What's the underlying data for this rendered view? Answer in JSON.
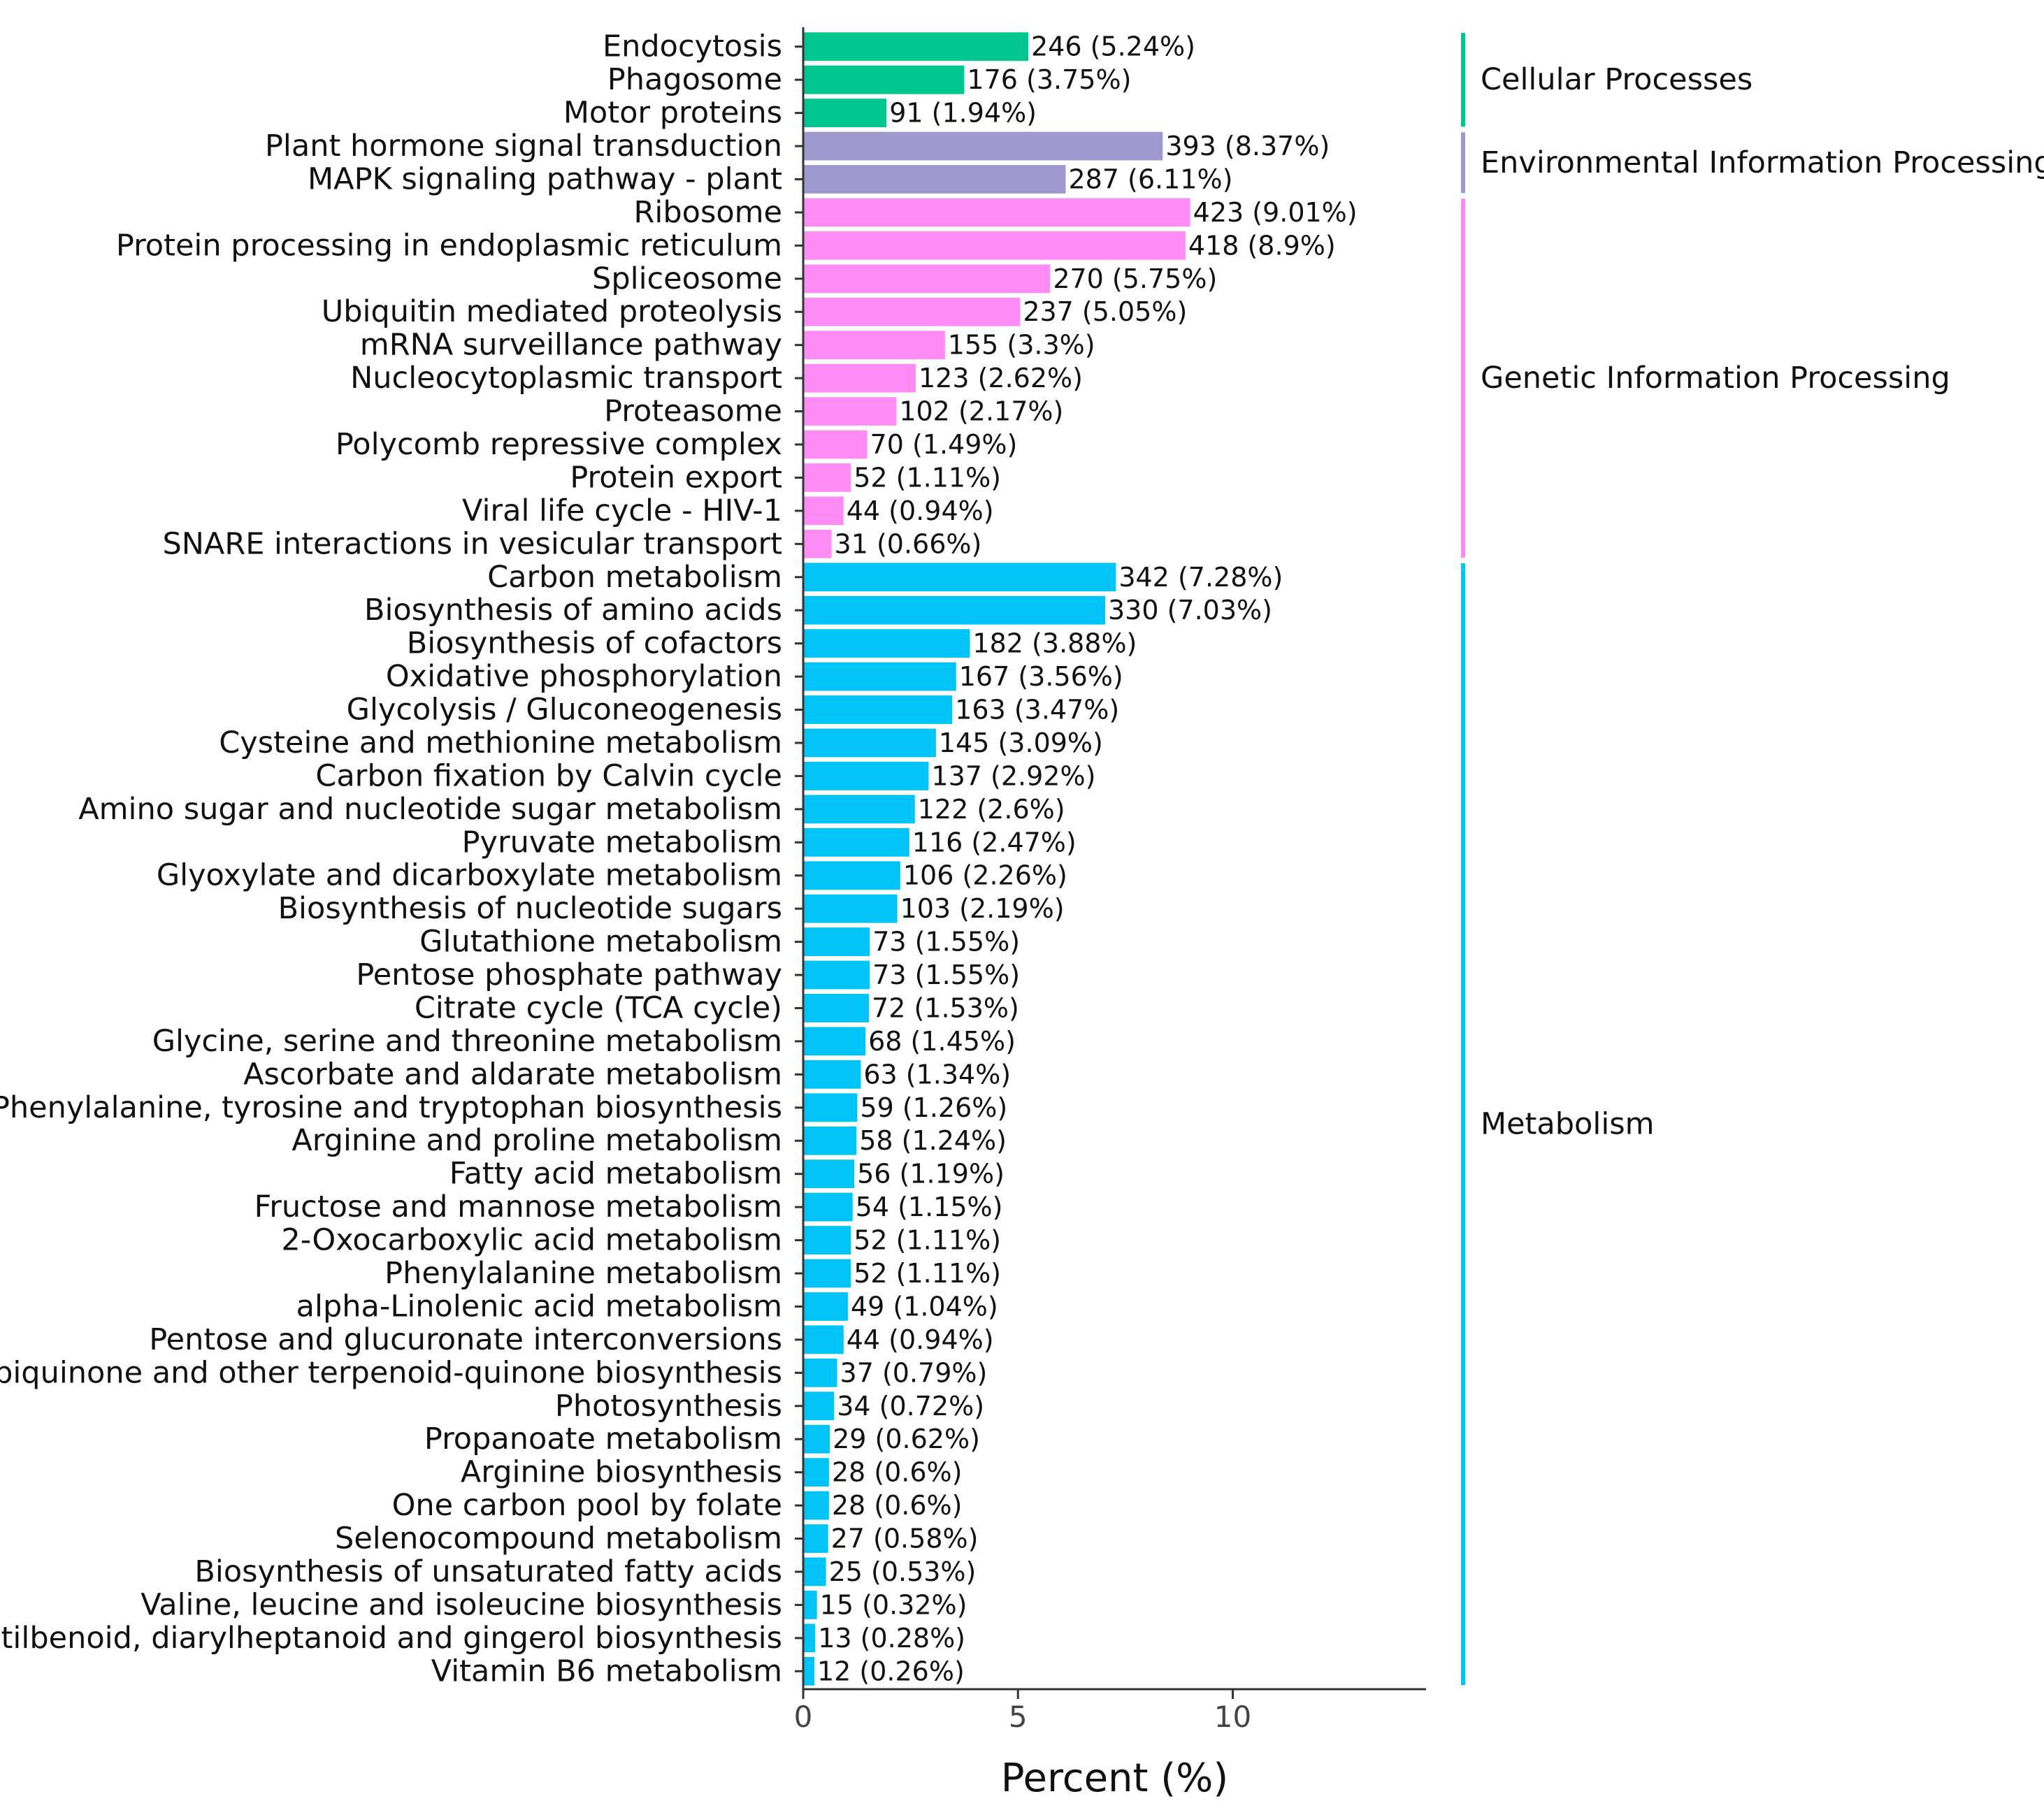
{
  "chart_data": {
    "type": "bar",
    "orientation": "horizontal",
    "title": "",
    "xlabel": "Percent (%)",
    "ylabel": "",
    "xlim": [
      0,
      14.5
    ],
    "xticks": [
      0,
      5,
      10
    ],
    "grid": false,
    "groups": [
      {
        "name": "Cellular Processes",
        "color": "#00c690",
        "start": 0,
        "end": 2
      },
      {
        "name": "Environmental Information Processing",
        "color": "#9e9ad0",
        "start": 3,
        "end": 4
      },
      {
        "name": "Genetic Information Processing",
        "color": "#ff8cf5",
        "start": 5,
        "end": 15
      },
      {
        "name": "Metabolism",
        "color": "#00c3f7",
        "start": 16,
        "end": 49
      }
    ],
    "bars": [
      {
        "category": "Endocytosis",
        "count": 246,
        "percent": 5.24,
        "label": "246 (5.24%)"
      },
      {
        "category": "Phagosome",
        "count": 176,
        "percent": 3.75,
        "label": "176 (3.75%)"
      },
      {
        "category": "Motor proteins",
        "count": 91,
        "percent": 1.94,
        "label": "91 (1.94%)"
      },
      {
        "category": "Plant hormone signal transduction",
        "count": 393,
        "percent": 8.37,
        "label": "393 (8.37%)"
      },
      {
        "category": "MAPK signaling pathway - plant",
        "count": 287,
        "percent": 6.11,
        "label": "287 (6.11%)"
      },
      {
        "category": "Ribosome",
        "count": 423,
        "percent": 9.01,
        "label": "423 (9.01%)"
      },
      {
        "category": "Protein processing in endoplasmic reticulum",
        "count": 418,
        "percent": 8.9,
        "label": "418 (8.9%)"
      },
      {
        "category": "Spliceosome",
        "count": 270,
        "percent": 5.75,
        "label": "270 (5.75%)"
      },
      {
        "category": "Ubiquitin mediated proteolysis",
        "count": 237,
        "percent": 5.05,
        "label": "237 (5.05%)"
      },
      {
        "category": "mRNA surveillance pathway",
        "count": 155,
        "percent": 3.3,
        "label": "155 (3.3%)"
      },
      {
        "category": "Nucleocytoplasmic transport",
        "count": 123,
        "percent": 2.62,
        "label": "123 (2.62%)"
      },
      {
        "category": "Proteasome",
        "count": 102,
        "percent": 2.17,
        "label": "102 (2.17%)"
      },
      {
        "category": "Polycomb repressive complex",
        "count": 70,
        "percent": 1.49,
        "label": "70 (1.49%)"
      },
      {
        "category": "Protein export",
        "count": 52,
        "percent": 1.11,
        "label": "52 (1.11%)"
      },
      {
        "category": "Viral life cycle - HIV-1",
        "count": 44,
        "percent": 0.94,
        "label": "44 (0.94%)"
      },
      {
        "category": "SNARE interactions in vesicular transport",
        "count": 31,
        "percent": 0.66,
        "label": "31 (0.66%)"
      },
      {
        "category": "Carbon metabolism",
        "count": 342,
        "percent": 7.28,
        "label": "342 (7.28%)"
      },
      {
        "category": "Biosynthesis of amino acids",
        "count": 330,
        "percent": 7.03,
        "label": "330 (7.03%)"
      },
      {
        "category": "Biosynthesis of cofactors",
        "count": 182,
        "percent": 3.88,
        "label": "182 (3.88%)"
      },
      {
        "category": "Oxidative phosphorylation",
        "count": 167,
        "percent": 3.56,
        "label": "167 (3.56%)"
      },
      {
        "category": "Glycolysis / Gluconeogenesis",
        "count": 163,
        "percent": 3.47,
        "label": "163 (3.47%)"
      },
      {
        "category": "Cysteine and methionine metabolism",
        "count": 145,
        "percent": 3.09,
        "label": "145 (3.09%)"
      },
      {
        "category": "Carbon fixation by Calvin cycle",
        "count": 137,
        "percent": 2.92,
        "label": "137 (2.92%)"
      },
      {
        "category": "Amino sugar and nucleotide sugar metabolism",
        "count": 122,
        "percent": 2.6,
        "label": "122 (2.6%)"
      },
      {
        "category": "Pyruvate metabolism",
        "count": 116,
        "percent": 2.47,
        "label": "116 (2.47%)"
      },
      {
        "category": "Glyoxylate and dicarboxylate metabolism",
        "count": 106,
        "percent": 2.26,
        "label": "106 (2.26%)"
      },
      {
        "category": "Biosynthesis of nucleotide sugars",
        "count": 103,
        "percent": 2.19,
        "label": "103 (2.19%)"
      },
      {
        "category": "Glutathione metabolism",
        "count": 73,
        "percent": 1.55,
        "label": "73 (1.55%)"
      },
      {
        "category": "Pentose phosphate pathway",
        "count": 73,
        "percent": 1.55,
        "label": "73 (1.55%)"
      },
      {
        "category": "Citrate cycle (TCA cycle)",
        "count": 72,
        "percent": 1.53,
        "label": "72 (1.53%)"
      },
      {
        "category": "Glycine, serine and threonine metabolism",
        "count": 68,
        "percent": 1.45,
        "label": "68 (1.45%)"
      },
      {
        "category": "Ascorbate and aldarate metabolism",
        "count": 63,
        "percent": 1.34,
        "label": "63 (1.34%)"
      },
      {
        "category": "Phenylalanine, tyrosine and tryptophan biosynthesis",
        "count": 59,
        "percent": 1.26,
        "label": "59 (1.26%)"
      },
      {
        "category": "Arginine and proline metabolism",
        "count": 58,
        "percent": 1.24,
        "label": "58 (1.24%)"
      },
      {
        "category": "Fatty acid metabolism",
        "count": 56,
        "percent": 1.19,
        "label": "56 (1.19%)"
      },
      {
        "category": "Fructose and mannose metabolism",
        "count": 54,
        "percent": 1.15,
        "label": "54 (1.15%)"
      },
      {
        "category": "2-Oxocarboxylic acid metabolism",
        "count": 52,
        "percent": 1.11,
        "label": "52 (1.11%)"
      },
      {
        "category": "Phenylalanine metabolism",
        "count": 52,
        "percent": 1.11,
        "label": "52 (1.11%)"
      },
      {
        "category": "alpha-Linolenic acid metabolism",
        "count": 49,
        "percent": 1.04,
        "label": "49 (1.04%)"
      },
      {
        "category": "Pentose and glucuronate interconversions",
        "count": 44,
        "percent": 0.94,
        "label": "44 (0.94%)"
      },
      {
        "category": "Ubiquinone and other terpenoid-quinone biosynthesis",
        "count": 37,
        "percent": 0.79,
        "label": "37 (0.79%)"
      },
      {
        "category": "Photosynthesis",
        "count": 34,
        "percent": 0.72,
        "label": "34 (0.72%)"
      },
      {
        "category": "Propanoate metabolism",
        "count": 29,
        "percent": 0.62,
        "label": "29 (0.62%)"
      },
      {
        "category": "Arginine biosynthesis",
        "count": 28,
        "percent": 0.6,
        "label": "28 (0.6%)"
      },
      {
        "category": "One carbon pool by folate",
        "count": 28,
        "percent": 0.6,
        "label": "28 (0.6%)"
      },
      {
        "category": "Selenocompound metabolism",
        "count": 27,
        "percent": 0.58,
        "label": "27 (0.58%)"
      },
      {
        "category": "Biosynthesis of unsaturated fatty acids",
        "count": 25,
        "percent": 0.53,
        "label": "25 (0.53%)"
      },
      {
        "category": "Valine, leucine and isoleucine biosynthesis",
        "count": 15,
        "percent": 0.32,
        "label": "15 (0.32%)"
      },
      {
        "category": "Stilbenoid, diarylheptanoid and gingerol biosynthesis",
        "count": 13,
        "percent": 0.28,
        "label": "13 (0.28%)"
      },
      {
        "category": "Vitamin B6 metabolism",
        "count": 12,
        "percent": 0.26,
        "label": "12 (0.26%)"
      }
    ]
  }
}
